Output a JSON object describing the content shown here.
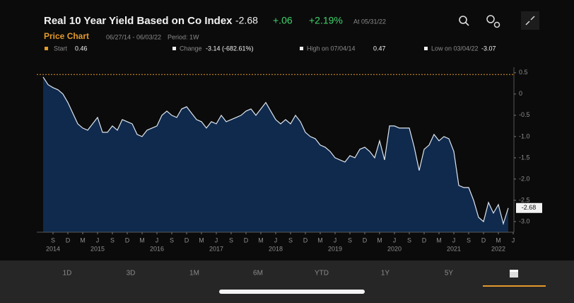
{
  "header": {
    "title": "Real 10 Year Yield Based on Co Index",
    "price": "-2.68",
    "change": "+.06",
    "change_pct": "+2.19%",
    "as_of": "At 05/31/22"
  },
  "subheader": {
    "title": "Price Chart",
    "range": "06/27/14 - 06/03/22",
    "period": "Period: 1W"
  },
  "stats": {
    "start_label": "Start",
    "start_value": 0.46,
    "change_label": "Change",
    "change_value": "-3.14 (-682.61%)",
    "high_label": "High on 07/04/14",
    "high_value": 0.47,
    "low_label": "Low on 03/04/22",
    "low_value": -3.07
  },
  "chart_data": {
    "type": "area",
    "color": "#0f2a4d",
    "line_color": "#dfe6ee",
    "reference_color": "#e39a2b",
    "x": [
      "2014-07",
      "2014-08",
      "2014-09",
      "2014-10",
      "2014-11",
      "2014-12",
      "2015-01",
      "2015-02",
      "2015-03",
      "2015-04",
      "2015-05",
      "2015-06",
      "2015-07",
      "2015-08",
      "2015-09",
      "2015-10",
      "2015-11",
      "2015-12",
      "2016-01",
      "2016-02",
      "2016-03",
      "2016-04",
      "2016-05",
      "2016-06",
      "2016-07",
      "2016-08",
      "2016-09",
      "2016-10",
      "2016-11",
      "2016-12",
      "2017-01",
      "2017-02",
      "2017-03",
      "2017-04",
      "2017-05",
      "2017-06",
      "2017-07",
      "2017-08",
      "2017-09",
      "2017-10",
      "2017-11",
      "2017-12",
      "2018-01",
      "2018-02",
      "2018-03",
      "2018-04",
      "2018-05",
      "2018-06",
      "2018-07",
      "2018-08",
      "2018-09",
      "2018-10",
      "2018-11",
      "2018-12",
      "2019-01",
      "2019-02",
      "2019-03",
      "2019-04",
      "2019-05",
      "2019-06",
      "2019-07",
      "2019-08",
      "2019-09",
      "2019-10",
      "2019-11",
      "2019-12",
      "2020-01",
      "2020-02",
      "2020-03",
      "2020-04",
      "2020-05",
      "2020-06",
      "2020-07",
      "2020-08",
      "2020-09",
      "2020-10",
      "2020-11",
      "2020-12",
      "2021-01",
      "2021-02",
      "2021-03",
      "2021-04",
      "2021-05",
      "2021-06",
      "2021-07",
      "2021-08",
      "2021-09",
      "2021-10",
      "2021-11",
      "2021-12",
      "2022-01",
      "2022-02",
      "2022-03",
      "2022-04",
      "2022-05"
    ],
    "values": [
      0.4,
      0.22,
      0.15,
      0.1,
      0.0,
      -0.2,
      -0.45,
      -0.7,
      -0.8,
      -0.85,
      -0.7,
      -0.55,
      -0.9,
      -0.9,
      -0.75,
      -0.85,
      -0.6,
      -0.65,
      -0.7,
      -0.95,
      -1.0,
      -0.85,
      -0.8,
      -0.75,
      -0.5,
      -0.4,
      -0.5,
      -0.55,
      -0.35,
      -0.3,
      -0.45,
      -0.6,
      -0.65,
      -0.8,
      -0.65,
      -0.7,
      -0.5,
      -0.65,
      -0.6,
      -0.55,
      -0.5,
      -0.4,
      -0.35,
      -0.5,
      -0.35,
      -0.2,
      -0.4,
      -0.6,
      -0.7,
      -0.6,
      -0.7,
      -0.5,
      -0.65,
      -0.9,
      -1.0,
      -1.05,
      -1.2,
      -1.25,
      -1.35,
      -1.5,
      -1.55,
      -1.6,
      -1.45,
      -1.5,
      -1.3,
      -1.25,
      -1.35,
      -1.5,
      -1.1,
      -1.55,
      -0.75,
      -0.75,
      -0.8,
      -0.8,
      -0.8,
      -1.25,
      -1.8,
      -1.3,
      -1.2,
      -0.95,
      -1.1,
      -1.0,
      -1.05,
      -1.35,
      -2.15,
      -2.2,
      -2.2,
      -2.5,
      -2.9,
      -3.0,
      -2.55,
      -2.8,
      -2.6,
      -3.05,
      -2.68
    ],
    "xlim": [
      "2014-06",
      "2022-06"
    ],
    "xticks": [
      {
        "value": "2014-09",
        "label": "S"
      },
      {
        "value": "2014-12",
        "label": "D"
      },
      {
        "value": "2015-03",
        "label": "M"
      },
      {
        "value": "2015-06",
        "label": "J"
      },
      {
        "value": "2015-09",
        "label": "S"
      },
      {
        "value": "2015-12",
        "label": "D"
      },
      {
        "value": "2016-03",
        "label": "M"
      },
      {
        "value": "2016-06",
        "label": "J"
      },
      {
        "value": "2016-09",
        "label": "S"
      },
      {
        "value": "2016-12",
        "label": "D"
      },
      {
        "value": "2017-03",
        "label": "M"
      },
      {
        "value": "2017-06",
        "label": "J"
      },
      {
        "value": "2017-09",
        "label": "S"
      },
      {
        "value": "2017-12",
        "label": "D"
      },
      {
        "value": "2018-03",
        "label": "M"
      },
      {
        "value": "2018-06",
        "label": "J"
      },
      {
        "value": "2018-09",
        "label": "S"
      },
      {
        "value": "2018-12",
        "label": "D"
      },
      {
        "value": "2019-03",
        "label": "M"
      },
      {
        "value": "2019-06",
        "label": "J"
      },
      {
        "value": "2019-09",
        "label": "S"
      },
      {
        "value": "2019-12",
        "label": "D"
      },
      {
        "value": "2020-03",
        "label": "M"
      },
      {
        "value": "2020-06",
        "label": "J"
      },
      {
        "value": "2020-09",
        "label": "S"
      },
      {
        "value": "2020-12",
        "label": "D"
      },
      {
        "value": "2021-03",
        "label": "M"
      },
      {
        "value": "2021-06",
        "label": "J"
      },
      {
        "value": "2021-09",
        "label": "S"
      },
      {
        "value": "2021-12",
        "label": "D"
      },
      {
        "value": "2022-03",
        "label": "M"
      },
      {
        "value": "2022-06",
        "label": "J"
      }
    ],
    "year_ticks": [
      {
        "value": "2014-09",
        "label": "2014"
      },
      {
        "value": "2015-06",
        "label": "2015"
      },
      {
        "value": "2016-06",
        "label": "2016"
      },
      {
        "value": "2017-06",
        "label": "2017"
      },
      {
        "value": "2018-06",
        "label": "2018"
      },
      {
        "value": "2019-06",
        "label": "2019"
      },
      {
        "value": "2020-06",
        "label": "2020"
      },
      {
        "value": "2021-06",
        "label": "2021"
      },
      {
        "value": "2022-03",
        "label": "2022"
      }
    ],
    "ylim": [
      -3.25,
      0.63
    ],
    "yticks": [
      0.5,
      0,
      -0.5,
      {
        "value": -1,
        "label": "-1.0"
      },
      -1.5,
      {
        "value": -2,
        "label": "-2.0"
      },
      -2.5,
      {
        "value": -3,
        "label": "-3.0"
      }
    ]
  },
  "tabs": [
    "1D",
    "3D",
    "1M",
    "6M",
    "YTD",
    "1Y",
    "5Y"
  ]
}
